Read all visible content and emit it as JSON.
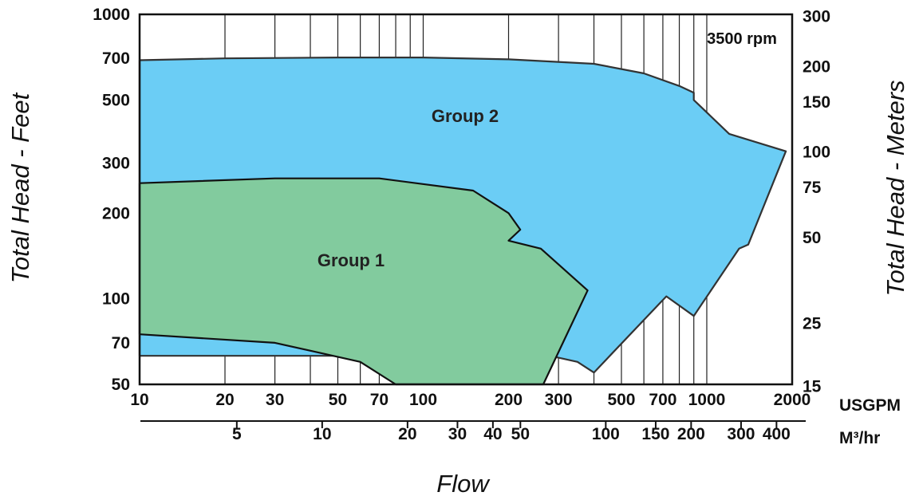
{
  "chart_data": {
    "type": "area",
    "speed_label": "3500 rpm",
    "x_axis": {
      "scale": "log",
      "range": [
        10,
        2000
      ],
      "title": "Flow",
      "unit": "USGPM",
      "ticks": [
        "10",
        "20",
        "30",
        "50",
        "70",
        "100",
        "200",
        "300",
        "500",
        "700",
        "1000",
        "2000"
      ],
      "gridlines": [
        20,
        30,
        40,
        50,
        60,
        70,
        80,
        90,
        100,
        200,
        300,
        400,
        500,
        600,
        700,
        800,
        900,
        1000
      ]
    },
    "x_axis_secondary": {
      "scale": "log",
      "unit": "M³/hr",
      "ticks": [
        "5",
        "10",
        "20",
        "30",
        "40",
        "50",
        "100",
        "150",
        "200",
        "300",
        "400"
      ]
    },
    "y_axis_left": {
      "scale": "log",
      "range": [
        50,
        1000
      ],
      "title": "Total Head - Feet",
      "ticks": [
        "1000",
        "700",
        "500",
        "300",
        "200",
        "100",
        "70",
        "50"
      ]
    },
    "y_axis_right": {
      "scale": "log",
      "title": "Total Head - Meters",
      "ticks": [
        "300",
        "200",
        "150",
        "100",
        "75",
        "50",
        "25",
        "15"
      ]
    },
    "series": [
      {
        "name": "Group 2",
        "color": "#6BCDF5",
        "boundary": [
          [
            10,
            690
          ],
          [
            20,
            700
          ],
          [
            50,
            705
          ],
          [
            100,
            705
          ],
          [
            200,
            695
          ],
          [
            400,
            670
          ],
          [
            600,
            620
          ],
          [
            800,
            560
          ],
          [
            900,
            530
          ],
          [
            900,
            500
          ],
          [
            1200,
            380
          ],
          [
            1900,
            330
          ],
          [
            1400,
            155
          ],
          [
            1300,
            150
          ],
          [
            900,
            87
          ],
          [
            720,
            102
          ],
          [
            400,
            55
          ],
          [
            350,
            60
          ],
          [
            280,
            63
          ],
          [
            10,
            63
          ]
        ]
      },
      {
        "name": "Group 1",
        "color": "#82CB9E",
        "boundary": [
          [
            10,
            255
          ],
          [
            30,
            265
          ],
          [
            70,
            265
          ],
          [
            150,
            240
          ],
          [
            200,
            200
          ],
          [
            220,
            175
          ],
          [
            200,
            160
          ],
          [
            260,
            150
          ],
          [
            380,
            107
          ],
          [
            265,
            50
          ],
          [
            80,
            50
          ],
          [
            60,
            60
          ],
          [
            30,
            70
          ],
          [
            10,
            75
          ]
        ]
      }
    ],
    "legend": "none",
    "grid": true
  }
}
